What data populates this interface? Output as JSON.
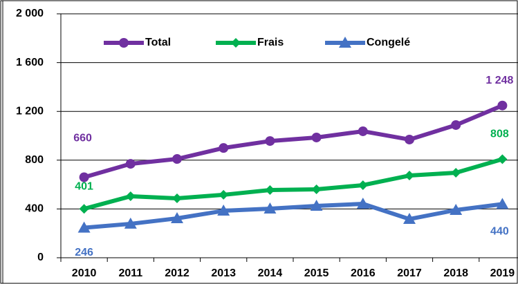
{
  "chart_data": {
    "type": "line",
    "categories": [
      "2010",
      "2011",
      "2012",
      "2013",
      "2014",
      "2015",
      "2016",
      "2017",
      "2018",
      "2019"
    ],
    "series": [
      {
        "name": "Total",
        "color": "#7030a0",
        "marker": "circle",
        "values": [
          660,
          770,
          810,
          900,
          957,
          986,
          1037,
          969,
          1088,
          1248
        ],
        "value_labels": [
          "660",
          null,
          null,
          null,
          null,
          null,
          null,
          null,
          null,
          "1 248"
        ]
      },
      {
        "name": "Frais",
        "color": "#00b050",
        "marker": "diamond",
        "values": [
          401,
          504,
          487,
          516,
          555,
          561,
          595,
          674,
          697,
          808
        ],
        "value_labels": [
          "401",
          null,
          null,
          null,
          null,
          null,
          null,
          null,
          null,
          "808"
        ]
      },
      {
        "name": "Congelé",
        "color": "#4472c4",
        "marker": "triangle",
        "values": [
          246,
          278,
          323,
          385,
          402,
          425,
          442,
          317,
          391,
          440
        ],
        "value_labels": [
          "246",
          null,
          null,
          null,
          null,
          null,
          null,
          null,
          null,
          "440"
        ]
      }
    ],
    "ylim": [
      0,
      2000
    ],
    "yticks": [
      0,
      400,
      800,
      {
        "value": 1200,
        "label": "1 200"
      },
      {
        "value": 1600,
        "label": "1 600"
      },
      {
        "value": 2000,
        "label": "2 000"
      }
    ],
    "grid": true,
    "legend": "top"
  }
}
